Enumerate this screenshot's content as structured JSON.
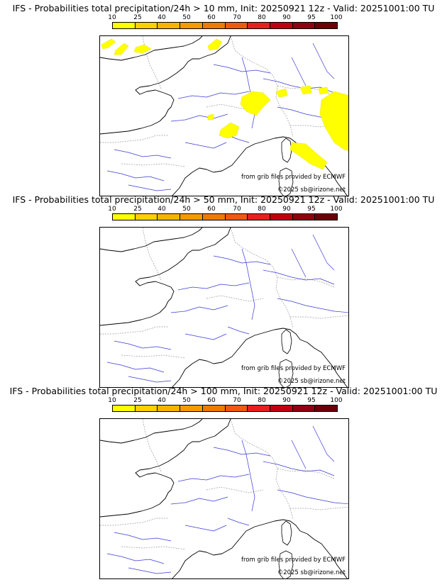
{
  "legend": {
    "ticks": [
      "10",
      "25",
      "40",
      "50",
      "60",
      "70",
      "80",
      "90",
      "95",
      "100"
    ],
    "colors": [
      "#ffff00",
      "#ffd000",
      "#f5b400",
      "#f59a00",
      "#f07a00",
      "#f05a10",
      "#e62020",
      "#c00010",
      "#900010",
      "#6a0008"
    ]
  },
  "credits": {
    "source": "from grib files provided by ECMWF",
    "copyright": "©2025 sb@irizone.net"
  },
  "panels": [
    {
      "title": "IFS - Probabilities total precipitation/24h > 10 mm, Init: 20250921 12z - Valid: 20251001:00 TU",
      "threshold_mm": 10,
      "has_precip": true
    },
    {
      "title": "IFS - Probabilities total precipitation/24h > 50 mm, Init: 20250921 12z - Valid: 20251001:00 TU",
      "threshold_mm": 50,
      "has_precip": false
    },
    {
      "title": "IFS - Probabilities total precipitation/24h > 100 mm, Init: 20250921 12z - Valid: 20251001:00 TU",
      "threshold_mm": 100,
      "has_precip": false
    }
  ]
}
